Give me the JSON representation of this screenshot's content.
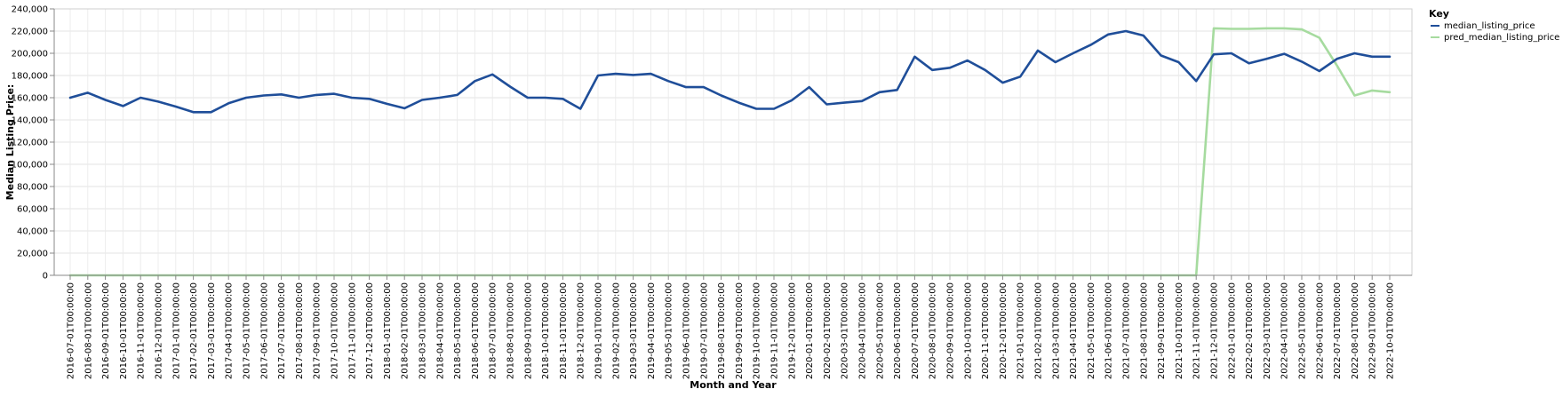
{
  "chart_data": {
    "type": "line",
    "xlabel": "Month and Year",
    "ylabel": "Median Listing Price:",
    "ylim": [
      0,
      240000
    ],
    "y_ticks": [
      "0",
      "20,000",
      "40,000",
      "60,000",
      "80,000",
      "100,000",
      "120,000",
      "140,000",
      "160,000",
      "180,000",
      "200,000",
      "220,000",
      "240,000"
    ],
    "grid": true,
    "legend": {
      "title": "Key",
      "position": "top-right"
    },
    "x": [
      "2016-07-01T00:00:00",
      "2016-08-01T00:00:00",
      "2016-09-01T00:00:00",
      "2016-10-01T00:00:00",
      "2016-11-01T00:00:00",
      "2016-12-01T00:00:00",
      "2017-01-01T00:00:00",
      "2017-02-01T00:00:00",
      "2017-03-01T00:00:00",
      "2017-04-01T00:00:00",
      "2017-05-01T00:00:00",
      "2017-06-01T00:00:00",
      "2017-07-01T00:00:00",
      "2017-08-01T00:00:00",
      "2017-09-01T00:00:00",
      "2017-10-01T00:00:00",
      "2017-11-01T00:00:00",
      "2017-12-01T00:00:00",
      "2018-01-01T00:00:00",
      "2018-02-01T00:00:00",
      "2018-03-01T00:00:00",
      "2018-04-01T00:00:00",
      "2018-05-01T00:00:00",
      "2018-06-01T00:00:00",
      "2018-07-01T00:00:00",
      "2018-08-01T00:00:00",
      "2018-09-01T00:00:00",
      "2018-10-01T00:00:00",
      "2018-11-01T00:00:00",
      "2018-12-01T00:00:00",
      "2019-01-01T00:00:00",
      "2019-02-01T00:00:00",
      "2019-03-01T00:00:00",
      "2019-04-01T00:00:00",
      "2019-05-01T00:00:00",
      "2019-06-01T00:00:00",
      "2019-07-01T00:00:00",
      "2019-08-01T00:00:00",
      "2019-09-01T00:00:00",
      "2019-10-01T00:00:00",
      "2019-11-01T00:00:00",
      "2019-12-01T00:00:00",
      "2020-01-01T00:00:00",
      "2020-02-01T00:00:00",
      "2020-03-01T00:00:00",
      "2020-04-01T00:00:00",
      "2020-05-01T00:00:00",
      "2020-06-01T00:00:00",
      "2020-07-01T00:00:00",
      "2020-08-01T00:00:00",
      "2020-09-01T00:00:00",
      "2020-10-01T00:00:00",
      "2020-11-01T00:00:00",
      "2020-12-01T00:00:00",
      "2021-01-01T00:00:00",
      "2021-02-01T00:00:00",
      "2021-03-01T00:00:00",
      "2021-04-01T00:00:00",
      "2021-05-01T00:00:00",
      "2021-06-01T00:00:00",
      "2021-07-01T00:00:00",
      "2021-08-01T00:00:00",
      "2021-09-01T00:00:00",
      "2021-10-01T00:00:00",
      "2021-11-01T00:00:00",
      "2021-12-01T00:00:00",
      "2022-01-01T00:00:00",
      "2022-02-01T00:00:00",
      "2022-03-01T00:00:00",
      "2022-04-01T00:00:00",
      "2022-05-01T00:00:00",
      "2022-06-01T00:00:00",
      "2022-07-01T00:00:00",
      "2022-08-01T00:00:00",
      "2022-09-01T00:00:00",
      "2022-10-01T00:00:00"
    ],
    "series": [
      {
        "name": "median_listing_price",
        "color": "#1f4e99",
        "values": [
          160000,
          164500,
          158000,
          152500,
          160000,
          156500,
          152000,
          147000,
          147000,
          155000,
          160000,
          162000,
          163000,
          160000,
          162500,
          163500,
          160000,
          159000,
          154500,
          150500,
          158000,
          160000,
          162500,
          175000,
          181000,
          170000,
          160000,
          160000,
          159000,
          150000,
          180000,
          181500,
          180500,
          181500,
          175000,
          169500,
          169500,
          162000,
          155500,
          150000,
          150000,
          157500,
          169500,
          154000,
          155500,
          157000,
          165000,
          167000,
          197000,
          185000,
          187000,
          193500,
          185000,
          173500,
          179000,
          202500,
          192000,
          200000,
          207500,
          217000,
          220000,
          216000,
          198000,
          192000,
          175000,
          199000,
          200000,
          191000,
          195000,
          199500,
          192500,
          184000,
          195000,
          200000,
          197000,
          197000
        ]
      },
      {
        "name": "pred_median_listing_price",
        "color": "#a6db9f",
        "values": [
          0,
          0,
          0,
          0,
          0,
          0,
          0,
          0,
          0,
          0,
          0,
          0,
          0,
          0,
          0,
          0,
          0,
          0,
          0,
          0,
          0,
          0,
          0,
          0,
          0,
          0,
          0,
          0,
          0,
          0,
          0,
          0,
          0,
          0,
          0,
          0,
          0,
          0,
          0,
          0,
          0,
          0,
          0,
          0,
          0,
          0,
          0,
          0,
          0,
          0,
          0,
          0,
          0,
          0,
          0,
          0,
          0,
          0,
          0,
          0,
          0,
          0,
          0,
          0,
          0,
          222500,
          222000,
          222000,
          222500,
          222500,
          221500,
          214000,
          189000,
          162000,
          166500,
          165000
        ]
      }
    ]
  }
}
